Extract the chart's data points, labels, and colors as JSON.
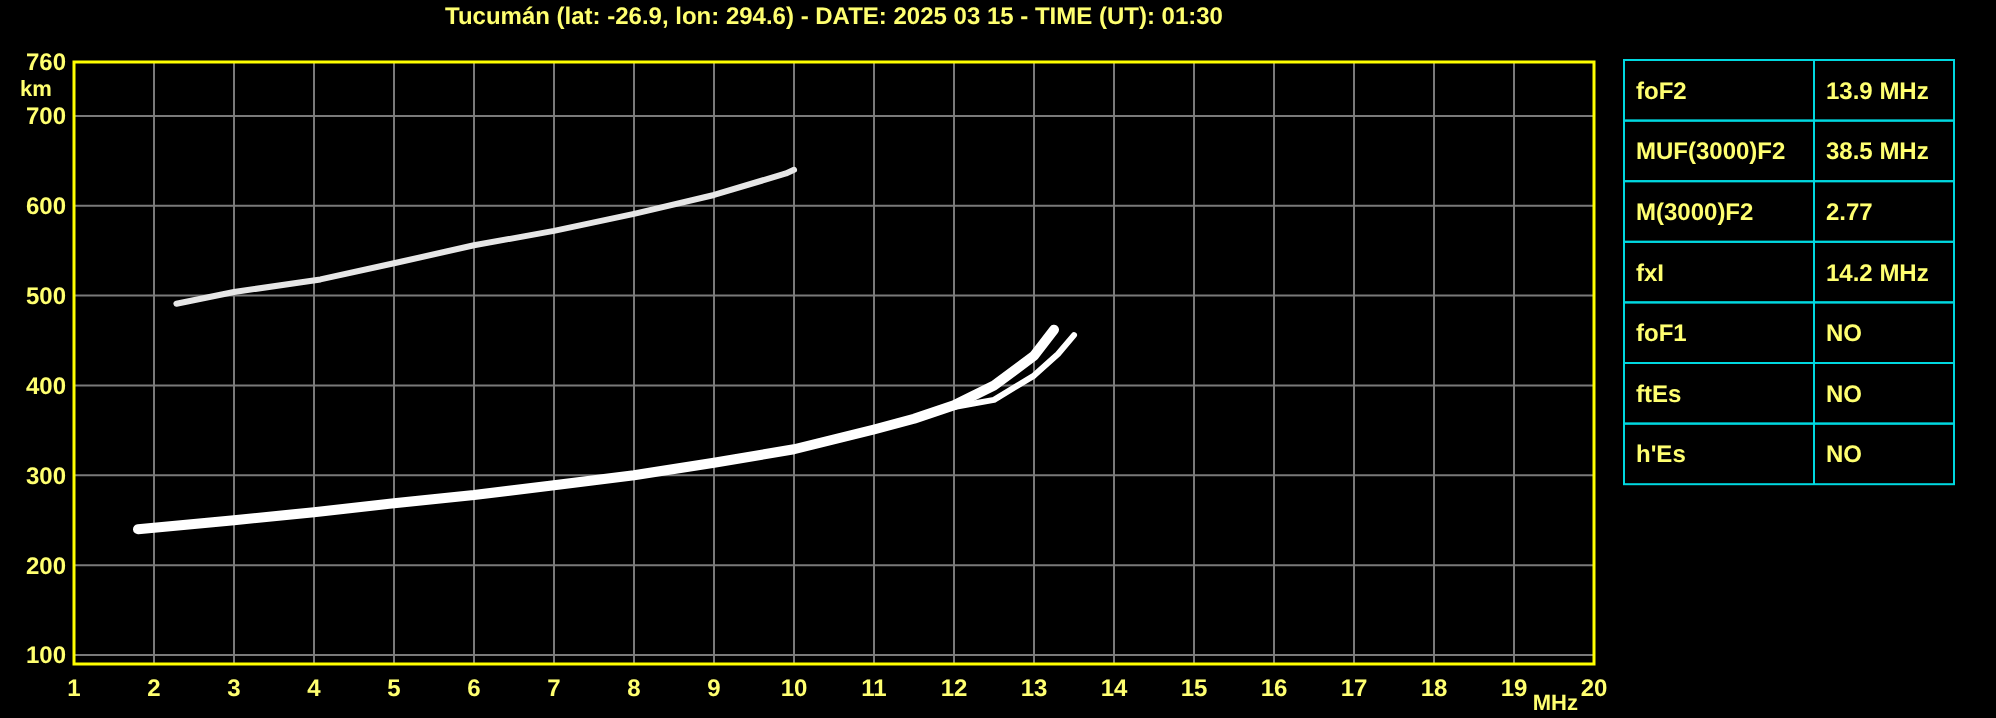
{
  "chart_data": [
    {
      "type": "line",
      "title": "Tucumán (lat: -26.9, lon: 294.6) - DATE: 2025 03 15 - TIME (UT): 01:30",
      "xlabel": "MHz",
      "ylabel": "km",
      "xlim": [
        1,
        20
      ],
      "xticks": [
        1,
        2,
        3,
        4,
        5,
        6,
        7,
        8,
        9,
        10,
        11,
        12,
        13,
        14,
        15,
        16,
        17,
        18,
        19,
        20
      ],
      "ylim": [
        90,
        760
      ],
      "yticks": [
        100,
        200,
        300,
        400,
        500,
        600,
        700,
        760
      ],
      "grid": true,
      "marker": "none",
      "line_style": "solid",
      "series": [
        {
          "color": "#ffffff",
          "x": [
            1.8,
            3,
            4,
            5,
            6,
            7,
            8,
            9,
            10,
            11,
            11.5,
            12,
            12.5,
            13,
            13.25
          ],
          "values": [
            240,
            250,
            259,
            269,
            278,
            289,
            300,
            314,
            329,
            351,
            363,
            378,
            400,
            433,
            462
          ]
        },
        {
          "color": "#ffffff",
          "x": [
            12,
            12.5,
            13,
            13.3,
            13.5
          ],
          "values": [
            376,
            384,
            411,
            435,
            456
          ]
        },
        {
          "color": "#e6e6e6",
          "x": [
            2.28,
            3,
            4.08,
            5,
            6,
            7,
            8,
            9,
            9.9,
            10
          ],
          "values": [
            491,
            504,
            518,
            536,
            556,
            572,
            591,
            612,
            636,
            640
          ]
        }
      ]
    },
    {
      "type": "other",
      "annotations": [
        "foF2",
        "13.9 MHz",
        "MUF(3000)F2",
        "38.5 MHz",
        "M(3000)F2",
        "2.77",
        "fxI",
        "14.2 MHz",
        "foF1",
        "NO",
        "ftEs",
        "NO",
        "h'Es",
        "NO"
      ]
    }
  ]
}
